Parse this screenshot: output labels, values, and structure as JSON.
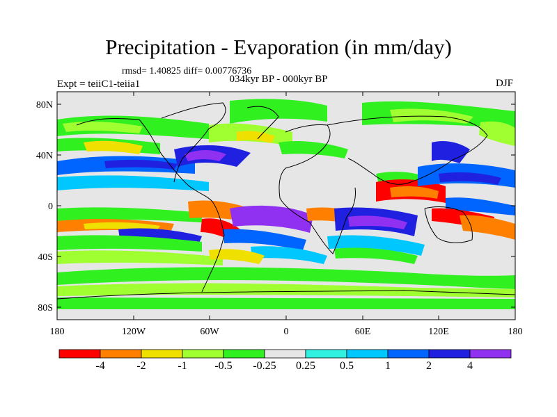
{
  "header": {
    "title": "Precipitation - Evaporation (in mm/day)",
    "stats": "rmsd= 1.40825 diff= 0.00776736",
    "experiment": "Expt = teiiC1-teiia1",
    "period": "034kyr BP - 000kyr BP",
    "season": "DJF"
  },
  "axes": {
    "lat_labels": [
      "80N",
      "40N",
      "0",
      "40S",
      "80S"
    ],
    "lon_labels": [
      "180",
      "120W",
      "60W",
      "0",
      "60E",
      "120E",
      "180"
    ]
  },
  "colorbar": {
    "colors": [
      "#ff0000",
      "#ff8000",
      "#f0e000",
      "#a0ff30",
      "#30f020",
      "#e6e6e6",
      "#30f0e0",
      "#00c8ff",
      "#0064ff",
      "#2020e0",
      "#9030f0"
    ],
    "labels": [
      "-4",
      "-2",
      "-1",
      "-0.5",
      "-0.25",
      "0.25",
      "0.5",
      "1",
      "2",
      "4"
    ]
  }
}
